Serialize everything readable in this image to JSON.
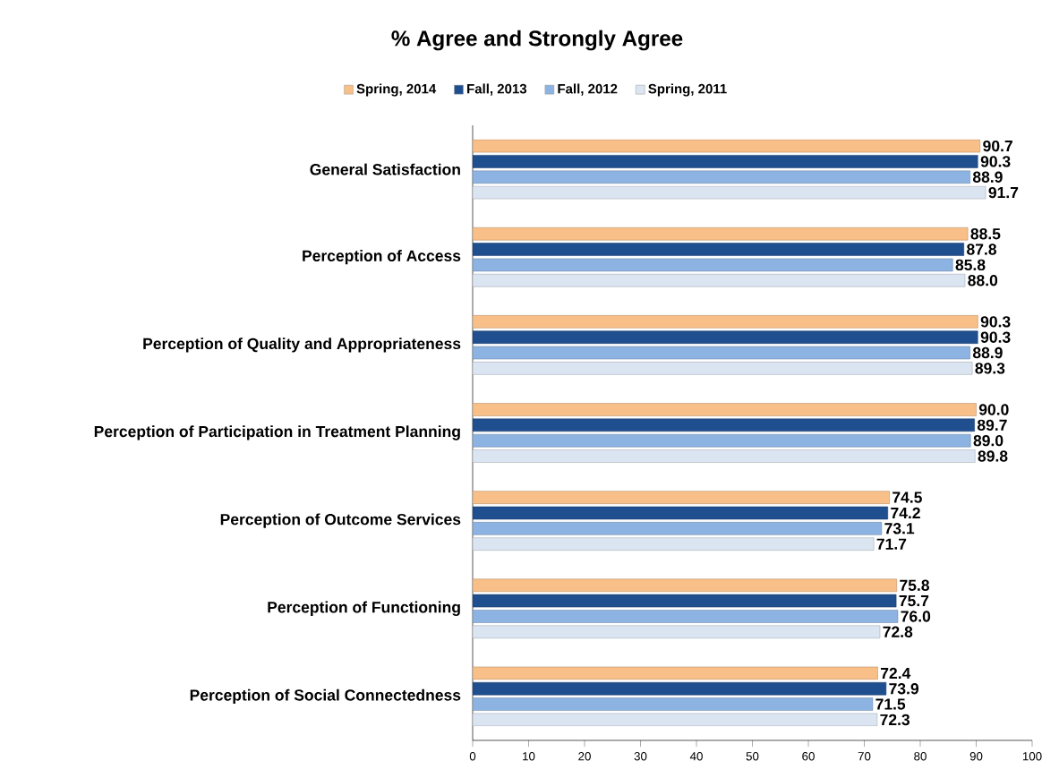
{
  "chart_data": {
    "type": "bar",
    "orientation": "horizontal",
    "title": "% Agree and Strongly Agree",
    "categories": [
      "General Satisfaction",
      "Perception of Access",
      "Perception of Quality and Appropriateness",
      "Perception of Participation in Treatment Planning",
      "Perception of Outcome Services",
      "Perception of Functioning",
      "Perception of Social Connectedness"
    ],
    "series": [
      {
        "name": "Spring, 2014",
        "color": "#f8bf88",
        "values": [
          90.7,
          88.5,
          90.3,
          90,
          74.5,
          75.8,
          72.4
        ],
        "value_labels": [
          "90.7",
          "88.5",
          "90.3",
          "90.0",
          "74.5",
          "75.8",
          "72.4"
        ]
      },
      {
        "name": "Fall, 2013",
        "color": "#1f4f8f",
        "values": [
          90.3,
          87.8,
          90.3,
          89.7,
          74.2,
          75.7,
          73.9
        ],
        "value_labels": [
          "90.3",
          "87.8",
          "90.3",
          "89.7",
          "74.2",
          "75.7",
          "73.9"
        ]
      },
      {
        "name": "Fall, 2012",
        "color": "#8db3e2",
        "values": [
          88.9,
          85.8,
          88.9,
          89,
          73.1,
          76,
          71.5
        ],
        "value_labels": [
          "88.9",
          "85.8",
          "88.9",
          "89.0",
          "73.1",
          "76.0",
          "71.5"
        ]
      },
      {
        "name": "Spring, 2011",
        "color": "#dbe5f1",
        "values": [
          91.7,
          88,
          89.3,
          89.8,
          71.7,
          72.8,
          72.3
        ],
        "value_labels": [
          "91.7",
          "88.0",
          "89.3",
          "89.8",
          "71.7",
          "72.8",
          "72.3"
        ]
      }
    ],
    "xlim": [
      0,
      100
    ],
    "xticks": [
      0,
      10,
      20,
      30,
      40,
      50,
      60,
      70,
      80,
      90,
      100
    ],
    "legend": "top"
  }
}
